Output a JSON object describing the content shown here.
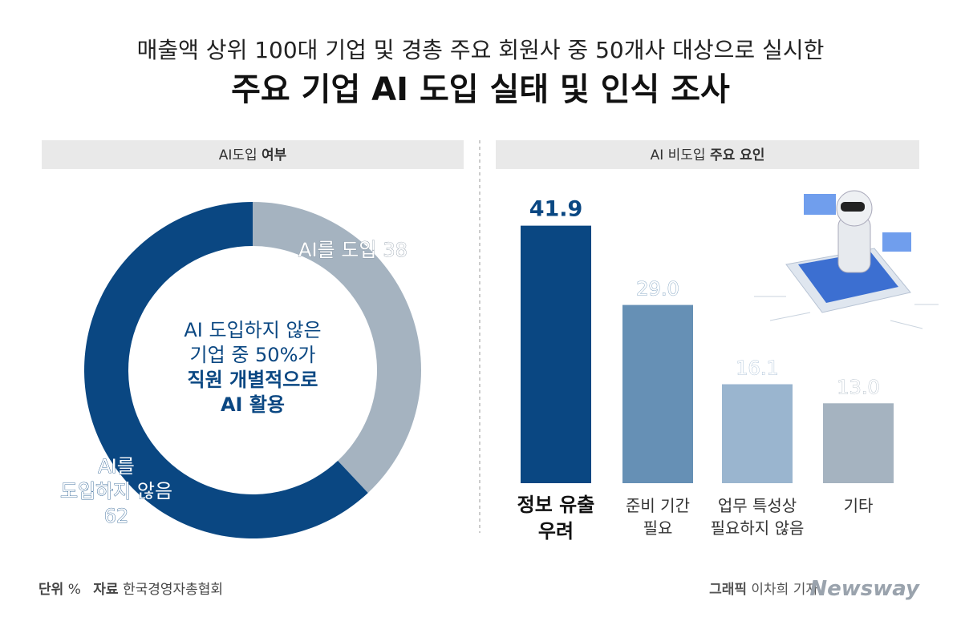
{
  "header": {
    "subtitle": "매출액 상위 100대 기업 및 경총 주요 회원사 중 50개사 대상으로 실시한",
    "title": "주요 기업 AI 도입 실태 및 인식 조사"
  },
  "chart_data": [
    {
      "type": "pie",
      "title": [
        "AI도입",
        "여부"
      ],
      "categories": [
        [
          "AI를 도입"
        ],
        [
          "AI를",
          "도입하지 않음"
        ]
      ],
      "values": [
        38,
        62
      ],
      "colors": [
        "#a5b3c0",
        "#0a4782"
      ],
      "annotation": [
        "AI 도입하지 않은",
        "기업 중 50%가",
        "직원 개별적으로",
        "AI 활용"
      ]
    },
    {
      "type": "bar",
      "title": [
        "AI 비도입",
        "주요 요인"
      ],
      "categories": [
        [
          "정보 유출",
          "우려"
        ],
        [
          "준비 기간",
          "필요"
        ],
        [
          "업무 특성상",
          "필요하지 않음"
        ],
        [
          "기타"
        ]
      ],
      "values": [
        41.9,
        29.0,
        16.1,
        13.0
      ],
      "value_labels": [
        "41.9",
        "29.0",
        "16.1",
        "13.0"
      ],
      "colors": [
        "#0a4782",
        "#6690b5",
        "#9ab5cf",
        "#a5b3c0"
      ]
    }
  ],
  "footer": {
    "unit_label": "단위",
    "unit": "%",
    "source_label": "자료",
    "source": "한국경영자총협회",
    "credit_label": "그래픽",
    "credit": "이차희 기자",
    "brand": "Newsway"
  }
}
